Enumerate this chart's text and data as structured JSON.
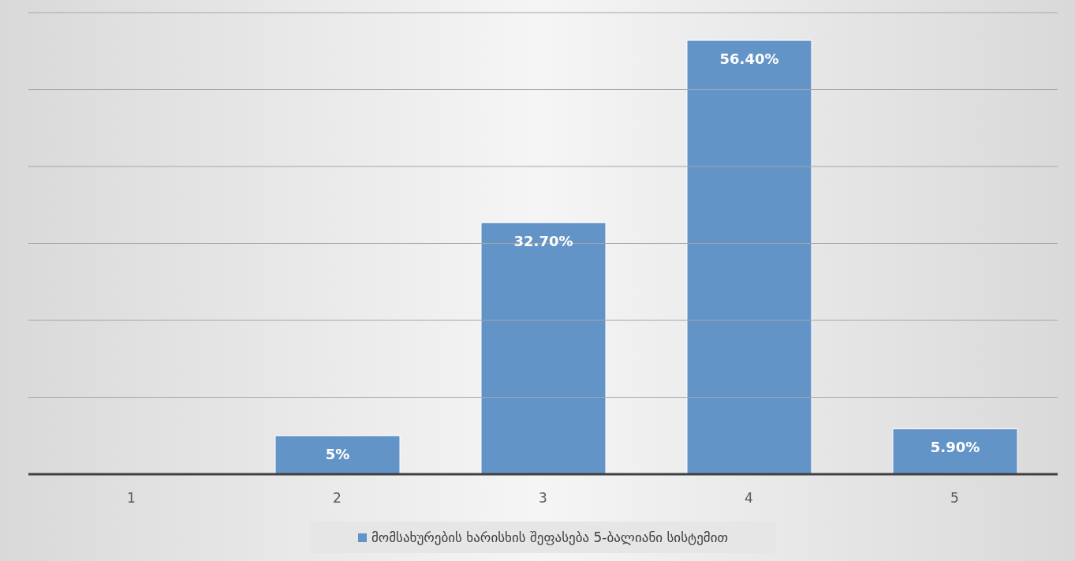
{
  "chart_data": {
    "type": "bar",
    "categories": [
      "1",
      "2",
      "3",
      "4",
      "5"
    ],
    "series": [
      {
        "name": "მომსახურების ხარისხის შეფასება 5-ბალიანი სისტემით",
        "color": "#6394c8",
        "values": [
          0,
          5,
          32.7,
          56.4,
          5.9
        ],
        "value_labels": [
          null,
          "5%",
          "32.70%",
          "56.40%",
          "5.90%"
        ]
      }
    ],
    "ylim": [
      0,
      60
    ],
    "yticks": [
      0,
      10,
      20,
      30,
      40,
      50,
      60
    ],
    "grid": "y",
    "tick_labels": "x",
    "legend": "bottom"
  }
}
